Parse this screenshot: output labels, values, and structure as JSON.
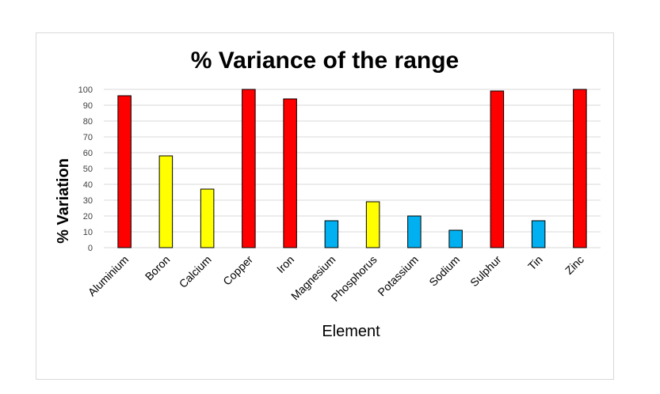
{
  "chart_data": {
    "type": "bar",
    "title": "% Variance of the range",
    "xlabel": "Element",
    "ylabel": "% Variation",
    "ylim": [
      0,
      100
    ],
    "yticks": [
      0,
      10,
      20,
      30,
      40,
      50,
      60,
      70,
      80,
      90,
      100
    ],
    "grid": true,
    "legend": "none",
    "categories": [
      "Aluminium",
      "Boron",
      "Calcium",
      "Copper",
      "Iron",
      "Magnesium",
      "Phosphorus",
      "Potassium",
      "Sodium",
      "Sulphur",
      "Tin",
      "Zinc"
    ],
    "values": [
      96,
      58,
      37,
      100,
      94,
      17,
      29,
      20,
      11,
      99,
      17,
      100
    ],
    "bar_colors": [
      "#ff0000",
      "#ffff00",
      "#ffff00",
      "#ff0000",
      "#ff0000",
      "#00b0f0",
      "#ffff00",
      "#00b0f0",
      "#00b0f0",
      "#ff0000",
      "#00b0f0",
      "#ff0000"
    ]
  }
}
